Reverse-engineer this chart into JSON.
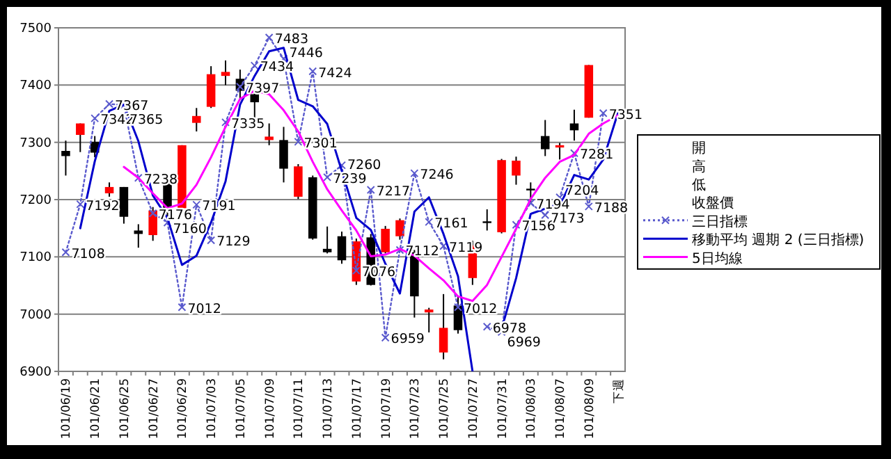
{
  "chart_data": {
    "type": "candlestick",
    "categories": [
      "101/06/19",
      null,
      "101/06/21",
      null,
      "101/06/25",
      null,
      "101/06/27",
      null,
      "101/06/29",
      null,
      "101/07/03",
      null,
      "101/07/05",
      null,
      "101/07/09",
      null,
      "101/07/11",
      null,
      "101/07/13",
      null,
      "101/07/17",
      null,
      "101/07/19",
      null,
      "101/07/23",
      null,
      "101/07/25",
      null,
      "101/07/27",
      null,
      "101/07/31",
      null,
      "101/08/03",
      null,
      "101/08/07",
      null,
      "101/08/09",
      null,
      "下週"
    ],
    "ohlc": [
      [
        7285,
        7303,
        7242,
        7276
      ],
      [
        7313,
        7333,
        7283,
        7333
      ],
      [
        7301,
        7311,
        7274,
        7282
      ],
      [
        7211,
        7230,
        7205,
        7222
      ],
      [
        7222,
        7222,
        7158,
        7170
      ],
      [
        7146,
        7157,
        7116,
        7140
      ],
      [
        7138,
        7187,
        7128,
        7181
      ],
      [
        7228,
        7228,
        7171,
        7177
      ],
      [
        7185,
        7295,
        7181,
        7295
      ],
      [
        7334,
        7360,
        7319,
        7346
      ],
      [
        7362,
        7433,
        7360,
        7419
      ],
      [
        7416,
        7443,
        7400,
        7423
      ],
      [
        7411,
        7427,
        7376,
        7390
      ],
      [
        7384,
        7392,
        7343,
        7370
      ],
      [
        7304,
        7333,
        7295,
        7310
      ],
      [
        7304,
        7327,
        7230,
        7254
      ],
      [
        7205,
        7262,
        7201,
        7258
      ],
      [
        7239,
        7242,
        7130,
        7132
      ],
      [
        7114,
        7153,
        7106,
        7108
      ],
      [
        7136,
        7144,
        7088,
        7094
      ],
      [
        7057,
        7132,
        7051,
        7127
      ],
      [
        7134,
        7140,
        7050,
        7051
      ],
      [
        7108,
        7154,
        7106,
        7149
      ],
      [
        7136,
        7167,
        7130,
        7164
      ],
      [
        7108,
        7112,
        6994,
        7031
      ],
      [
        7003,
        7011,
        6968,
        7008
      ],
      [
        6933,
        7035,
        6921,
        6976
      ],
      [
        7015,
        7031,
        6966,
        6972
      ],
      [
        7063,
        7128,
        7051,
        7120
      ],
      [
        7162,
        7183,
        7146,
        7160
      ],
      [
        7143,
        7271,
        7141,
        7269
      ],
      [
        7242,
        7275,
        7226,
        7268
      ],
      [
        7219,
        7230,
        7193,
        7217
      ],
      [
        7311,
        7339,
        7276,
        7288
      ],
      [
        7291,
        7299,
        7270,
        7295
      ],
      [
        7333,
        7357,
        7303,
        7321
      ],
      [
        7343,
        7435,
        7343,
        7435
      ],
      null,
      null
    ],
    "colors": [
      "#000000",
      "#ff0000",
      "#000000",
      "#ff0000",
      "#000000",
      "#000000",
      "#ff0000",
      "#000000",
      "#ff0000",
      "#ff0000",
      "#ff0000",
      "#ff0000",
      "#000000",
      "#000000",
      "#ff0000",
      "#000000",
      "#ff0000",
      "#000000",
      "#000000",
      "#000000",
      "#ff0000",
      "#000000",
      "#ff0000",
      "#ff0000",
      "#000000",
      "#ff0000",
      "#ff0000",
      "#000000",
      "#ff0000",
      "#000000",
      "#ff0000",
      "#ff0000",
      "#000000",
      "#000000",
      "#ff0000",
      "#000000",
      "#ff0000",
      null,
      null
    ],
    "annotations": [
      "開",
      "高",
      "低",
      "收盤價"
    ],
    "ylim": [
      6900,
      7500
    ],
    "yticks": [
      6900,
      7000,
      7100,
      7200,
      7300,
      7400,
      7500
    ],
    "grid": "y",
    "legend": "right",
    "series": [
      {
        "name": "三日指標",
        "type": "line",
        "color": "#5a5acd",
        "line_style": "dotted",
        "marker": "cross",
        "values": [
          7108,
          7192,
          7342,
          7367,
          7365,
          7238,
          7176,
          7160,
          7012,
          7191,
          7129,
          7335,
          7397,
          7434,
          7483,
          7446,
          7301,
          7424,
          7239,
          7260,
          7076,
          7217,
          6959,
          7112,
          7246,
          7161,
          7119,
          7012,
          null,
          6978,
          6969,
          7156,
          7194,
          7173,
          7204,
          7281,
          7188,
          7351,
          null
        ],
        "value_labels": [
          "7108",
          "7192",
          "7342",
          "7367",
          "7365",
          "7238",
          "7176",
          "7160",
          "7012",
          "7191",
          "7129",
          "7335",
          "7397",
          "7434",
          "7483",
          "7446",
          "7301",
          "7424",
          "7239",
          "7260",
          "7076",
          "7217",
          "6959",
          "7112",
          "7246",
          "7161",
          "7119",
          "7012",
          null,
          "6978",
          "6969",
          "7156",
          "7194",
          "7173",
          "7204",
          "7281",
          "7188",
          "7351",
          null
        ]
      },
      {
        "name": "移動平均 週期 2 (三日指標)",
        "type": "line",
        "color": "#0000cc",
        "line_style": "solid",
        "values": [
          null,
          7150,
          7267,
          7355,
          7366,
          7302,
          7207,
          7168,
          7086,
          7102,
          7160,
          7232,
          7366,
          7416,
          7459,
          7465,
          7374,
          7363,
          7332,
          7250,
          7168,
          7147,
          7088,
          7036,
          7179,
          7204,
          7140,
          7066,
          6900,
          null,
          6974,
          7063,
          7175,
          7184,
          7189,
          7243,
          7235,
          7270,
          7351
        ]
      },
      {
        "name": "5日均線",
        "type": "line",
        "color": "#ff00ff",
        "line_style": "solid",
        "values": [
          null,
          null,
          null,
          null,
          7257,
          7238,
          7211,
          7185,
          7193,
          7226,
          7274,
          7327,
          7376,
          7390,
          7384,
          7356,
          7319,
          7266,
          7218,
          7181,
          7146,
          7101,
          7104,
          7114,
          7102,
          7080,
          7059,
          7031,
          7023,
          7051,
          7100,
          7149,
          7201,
          7238,
          7266,
          7278,
          7315,
          7333,
          7347
        ]
      }
    ]
  }
}
